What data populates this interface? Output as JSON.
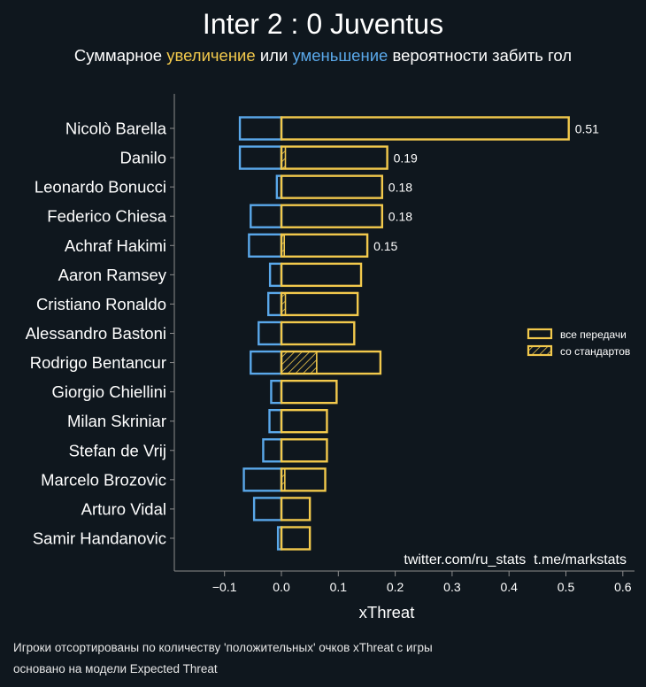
{
  "header": {
    "title": "Inter 2 : 0 Juventus",
    "subtitle_part1": "Суммарное ",
    "subtitle_increase": "увеличение",
    "subtitle_part2": " или ",
    "subtitle_decrease": "уменьшение",
    "subtitle_part3": " вероятности забить гол"
  },
  "colors": {
    "background": "#0f171e",
    "increase": "#f2c94c",
    "decrease": "#5aa8ea",
    "text": "#ffffff",
    "axis": "#8c8c8c"
  },
  "watermark": "twitter.com/ru_stats  t.me/markstats",
  "footnotes": [
    "Игроки отсортированы по количеству 'положительных' очков xThreat с игры",
    "основано на модели Expected Threat"
  ],
  "chart_data": {
    "type": "bar",
    "orientation": "horizontal",
    "title": "Inter 2 : 0 Juventus",
    "xlabel": "xThreat",
    "ylabel": "",
    "xlim": [
      -0.19,
      0.62
    ],
    "xticks": [
      -0.1,
      0.0,
      0.1,
      0.2,
      0.3,
      0.4,
      0.5,
      0.6
    ],
    "xtick_labels": [
      "−0.1",
      "0.0",
      "0.1",
      "0.2",
      "0.3",
      "0.4",
      "0.5",
      "0.6"
    ],
    "legend_position": "right",
    "legend": [
      {
        "name": "все передачи",
        "style": "outline"
      },
      {
        "name": "со стандартов",
        "style": "hatched"
      }
    ],
    "categories": [
      "Nicolò Barella",
      "Danilo",
      "Leonardo Bonucci",
      "Federico Chiesa",
      "Achraf Hakimi",
      "Aaron Ramsey",
      "Cristiano Ronaldo",
      "Alessandro Bastoni",
      "Rodrigo Bentancur",
      "Giorgio Chiellini",
      "Milan Skriniar",
      "Stefan de Vrij",
      "Marcelo Brozovic",
      "Arturo Vidal",
      "Samir Handanovic"
    ],
    "series": [
      {
        "name": "увеличение (все передачи)",
        "values": [
          0.505,
          0.186,
          0.177,
          0.177,
          0.151,
          0.14,
          0.134,
          0.128,
          0.174,
          0.097,
          0.08,
          0.08,
          0.077,
          0.05,
          0.05
        ]
      },
      {
        "name": "уменьшение",
        "values": [
          -0.073,
          -0.073,
          -0.008,
          -0.054,
          -0.057,
          -0.02,
          -0.023,
          -0.04,
          -0.054,
          -0.018,
          -0.021,
          -0.032,
          -0.066,
          -0.048,
          -0.006
        ]
      },
      {
        "name": "со стандартов",
        "values": [
          0.0,
          0.007,
          0.0,
          0.0,
          0.005,
          0.0,
          0.007,
          0.0,
          0.062,
          0.0,
          0.0,
          0.0,
          0.006,
          0.0,
          0.0
        ]
      }
    ],
    "value_labels": [
      "0.51",
      "0.19",
      "0.18",
      "0.18",
      "0.15",
      null,
      null,
      null,
      null,
      null,
      null,
      null,
      null,
      null,
      null
    ]
  }
}
